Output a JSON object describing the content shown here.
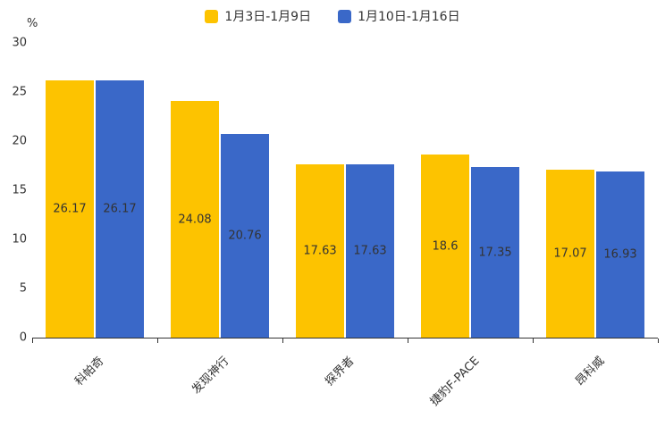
{
  "chart_data": {
    "type": "bar",
    "title": "",
    "categories": [
      "科帕奇",
      "发现神行",
      "探界者",
      "捷豹F-PACE",
      "昂科威"
    ],
    "series": [
      {
        "name": "1月3日-1月9日",
        "color": "#FDC300",
        "values": [
          26.17,
          24.08,
          17.63,
          18.6,
          17.07
        ]
      },
      {
        "name": "1月10日-1月16日",
        "color": "#3A68C8",
        "values": [
          26.17,
          20.76,
          17.63,
          17.35,
          16.93
        ]
      }
    ],
    "xlabel": "",
    "ylabel": "%",
    "ylim": [
      0,
      30
    ],
    "yticks": [
      0,
      5,
      10,
      15,
      20,
      25,
      30
    ],
    "legend_position": "top",
    "grid": false,
    "label_color": "#333333",
    "axis_color": "#333333",
    "background_color": "#ffffff"
  }
}
